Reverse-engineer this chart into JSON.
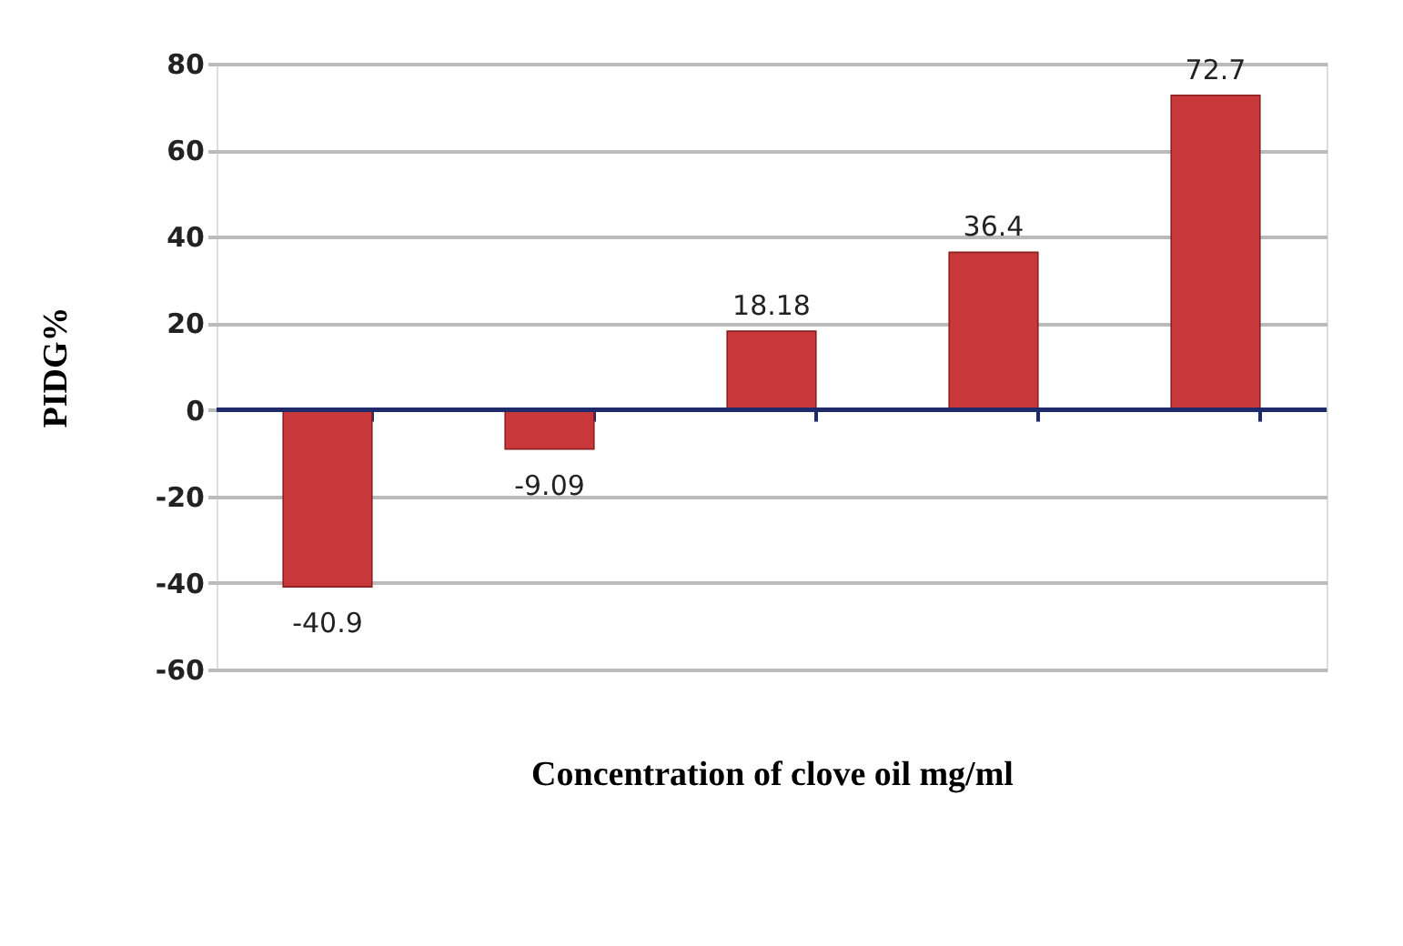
{
  "chart_data": {
    "type": "bar",
    "xlabel": "Concentration of clove oil mg/ml",
    "ylabel": "PIDG%",
    "categories": [
      null,
      null,
      null,
      null,
      null
    ],
    "values": [
      -40.9,
      -9.09,
      18.18,
      36.4,
      72.7
    ],
    "color": "#c8383a",
    "value_labels": [
      "-40.9",
      "-9.09",
      "18.18",
      "36.4",
      "72.7"
    ],
    "ylim": [
      -60,
      80
    ],
    "yticks": [
      80,
      60,
      40,
      20,
      0,
      -20,
      -40,
      -60
    ],
    "grid": "y",
    "ref_lines": [
      {
        "axis": "y",
        "value": 0,
        "color": "#1f2a6b"
      }
    ]
  }
}
